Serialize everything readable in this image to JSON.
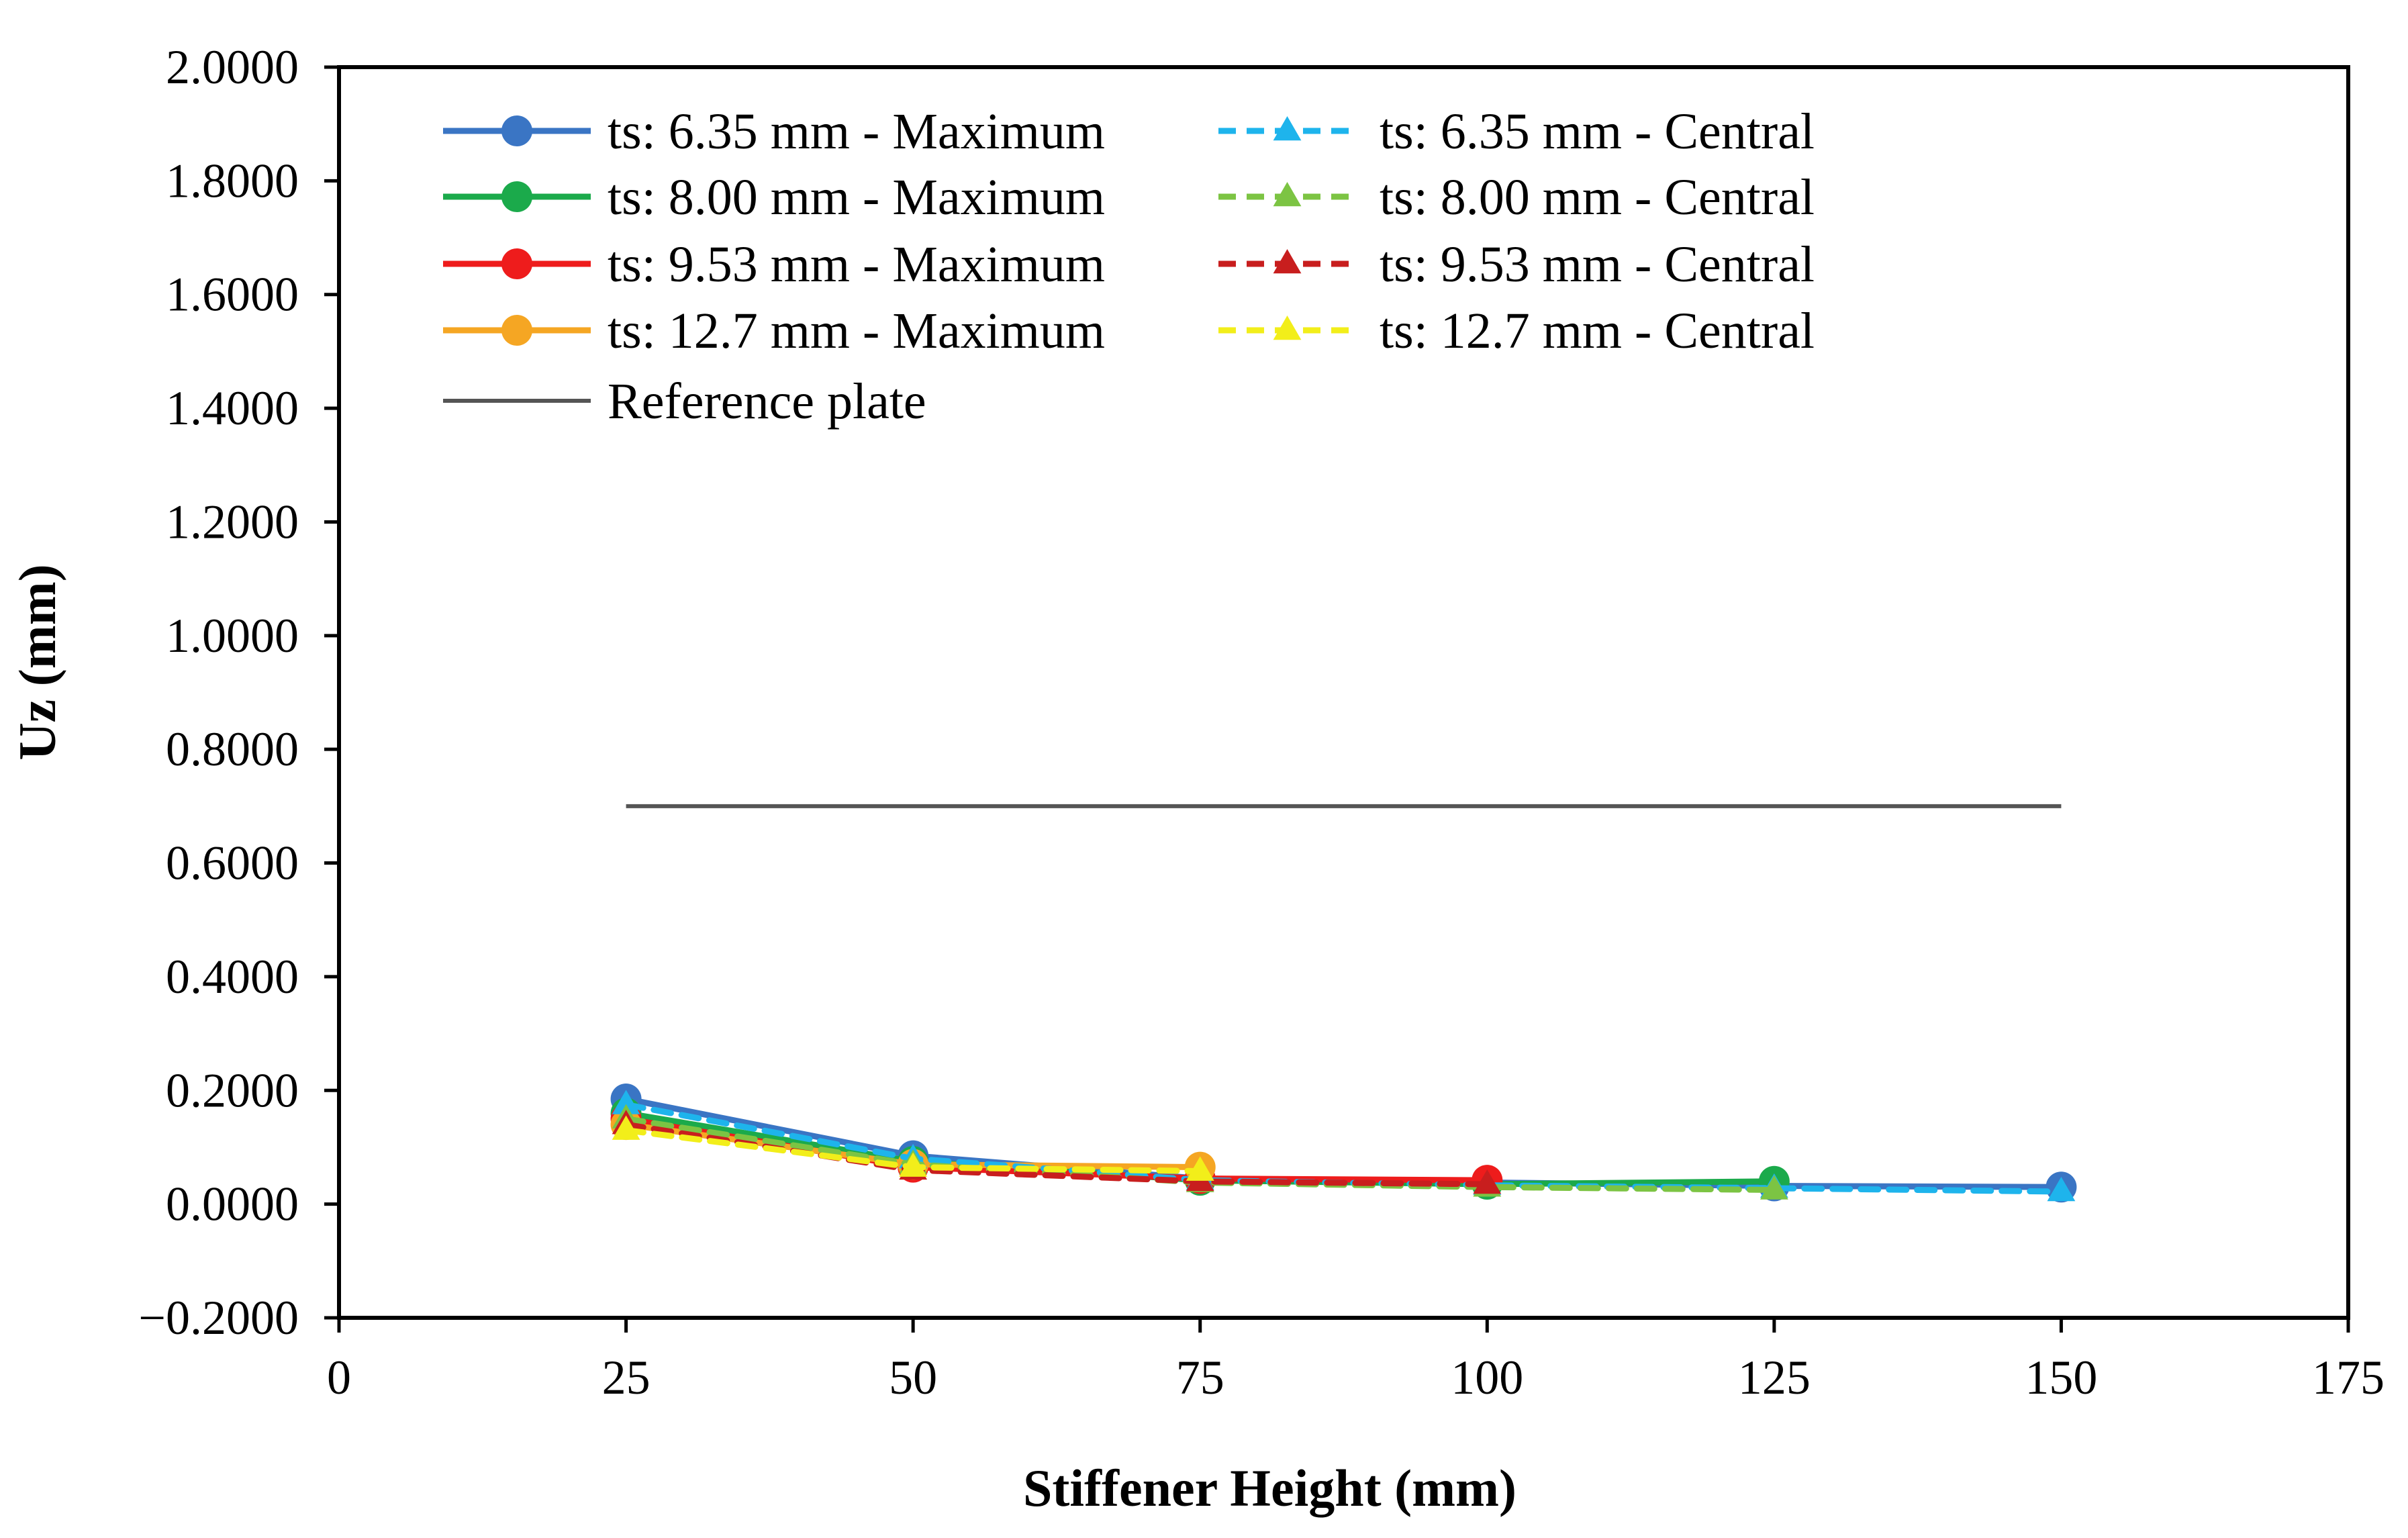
{
  "chart_data": {
    "type": "line",
    "title": "",
    "xlabel": "Stiffener Height (mm)",
    "ylabel": "Uz (mm)",
    "xlim": [
      0,
      175
    ],
    "ylim": [
      -0.2,
      2.0
    ],
    "x_ticks": [
      0,
      25,
      50,
      75,
      100,
      125,
      150,
      175
    ],
    "x_tick_labels": [
      "0",
      "25",
      "50",
      "75",
      "100",
      "125",
      "150",
      "175"
    ],
    "y_ticks": [
      2.0,
      1.8,
      1.6,
      1.4,
      1.2,
      1.0,
      0.8,
      0.6,
      0.4,
      0.2,
      0.0,
      -0.2
    ],
    "y_tick_labels": [
      "2.0000",
      "1.8000",
      "1.6000",
      "1.4000",
      "1.2000",
      "1.0000",
      "0.8000",
      "0.6000",
      "0.4000",
      "0.2000",
      "0.0000",
      "−0.2000"
    ],
    "grid": false,
    "legend_position": "top-left",
    "series": [
      {
        "name": "ts: 6.35 mm - Maximum",
        "color": "#3A75C4",
        "dash": "solid",
        "marker": "circle",
        "x": [
          25,
          50,
          75,
          100,
          125,
          150
        ],
        "y": [
          0.185,
          0.085,
          0.045,
          0.038,
          0.032,
          0.03
        ]
      },
      {
        "name": "ts: 6.35 mm - Central",
        "color": "#1EB4EC",
        "dash": "dashed",
        "marker": "triangle",
        "x": [
          25,
          50,
          75,
          100,
          125,
          150
        ],
        "y": [
          0.175,
          0.08,
          0.042,
          0.033,
          0.028,
          0.022
        ]
      },
      {
        "name": "ts: 8.00 mm - Maximum",
        "color": "#1BAA4B",
        "dash": "solid",
        "marker": "circle",
        "x": [
          25,
          50,
          75,
          100,
          125
        ],
        "y": [
          0.16,
          0.075,
          0.042,
          0.035,
          0.04
        ]
      },
      {
        "name": "ts: 8.00 mm - Central",
        "color": "#7CC443",
        "dash": "dashed",
        "marker": "triangle",
        "x": [
          25,
          50,
          75,
          100,
          125
        ],
        "y": [
          0.15,
          0.07,
          0.038,
          0.03,
          0.025
        ]
      },
      {
        "name": "ts: 9.53 mm - Maximum",
        "color": "#EE1C1C",
        "dash": "solid",
        "marker": "circle",
        "x": [
          25,
          50,
          75,
          100
        ],
        "y": [
          0.15,
          0.065,
          0.045,
          0.042
        ]
      },
      {
        "name": "ts: 9.53 mm - Central",
        "color": "#C81E1E",
        "dash": "dashed",
        "marker": "triangle",
        "x": [
          25,
          50,
          75,
          100
        ],
        "y": [
          0.14,
          0.06,
          0.04,
          0.035
        ]
      },
      {
        "name": "ts: 12.7 mm - Maximum",
        "color": "#F5A623",
        "dash": "solid",
        "marker": "circle",
        "x": [
          25,
          50,
          75
        ],
        "y": [
          0.14,
          0.07,
          0.065
        ]
      },
      {
        "name": "ts: 12.7 mm - Central",
        "color": "#F2EE1A",
        "dash": "dashed",
        "marker": "triangle",
        "x": [
          25,
          50,
          75
        ],
        "y": [
          0.13,
          0.065,
          0.058
        ]
      }
    ],
    "reference": {
      "name": "Reference plate",
      "color": "#555555",
      "x": [
        25,
        150
      ],
      "y": [
        0.7,
        0.7
      ]
    }
  }
}
